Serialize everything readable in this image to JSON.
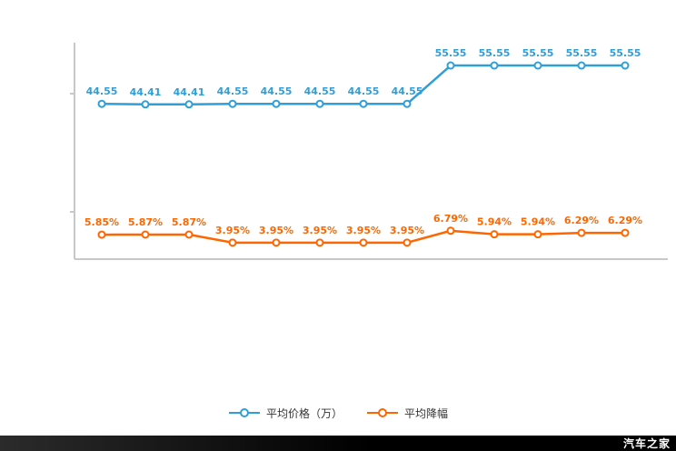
{
  "chart_data": {
    "type": "line",
    "x_count": 13,
    "grid": false,
    "legend_position": "bottom",
    "left_ylim": [
      0,
      60
    ],
    "right_ylim": [
      0,
      50
    ],
    "series": [
      {
        "name": "平均价格（万）",
        "color": "#2e9fd8",
        "axis": "left",
        "values": [
          44.55,
          44.41,
          44.41,
          44.55,
          44.55,
          44.55,
          44.55,
          44.55,
          55.55,
          55.55,
          55.55,
          55.55,
          55.55
        ],
        "labels": [
          "44.55",
          "44.41",
          "44.41",
          "44.55",
          "44.55",
          "44.55",
          "44.55",
          "44.55",
          "55.55",
          "55.55",
          "55.55",
          "55.55",
          "55.55"
        ]
      },
      {
        "name": "平均降幅",
        "color": "#ff6600",
        "axis": "right",
        "values": [
          5.85,
          5.87,
          5.87,
          3.95,
          3.95,
          3.95,
          3.95,
          3.95,
          6.79,
          5.94,
          5.94,
          6.29,
          6.29
        ],
        "labels": [
          "5.85%",
          "5.87%",
          "5.87%",
          "3.95%",
          "3.95%",
          "3.95%",
          "3.95%",
          "3.95%",
          "6.79%",
          "5.94%",
          "5.94%",
          "6.29%",
          "6.29%"
        ]
      }
    ]
  },
  "axis_color": "#c8c8c8",
  "watermark": "汽车之家"
}
